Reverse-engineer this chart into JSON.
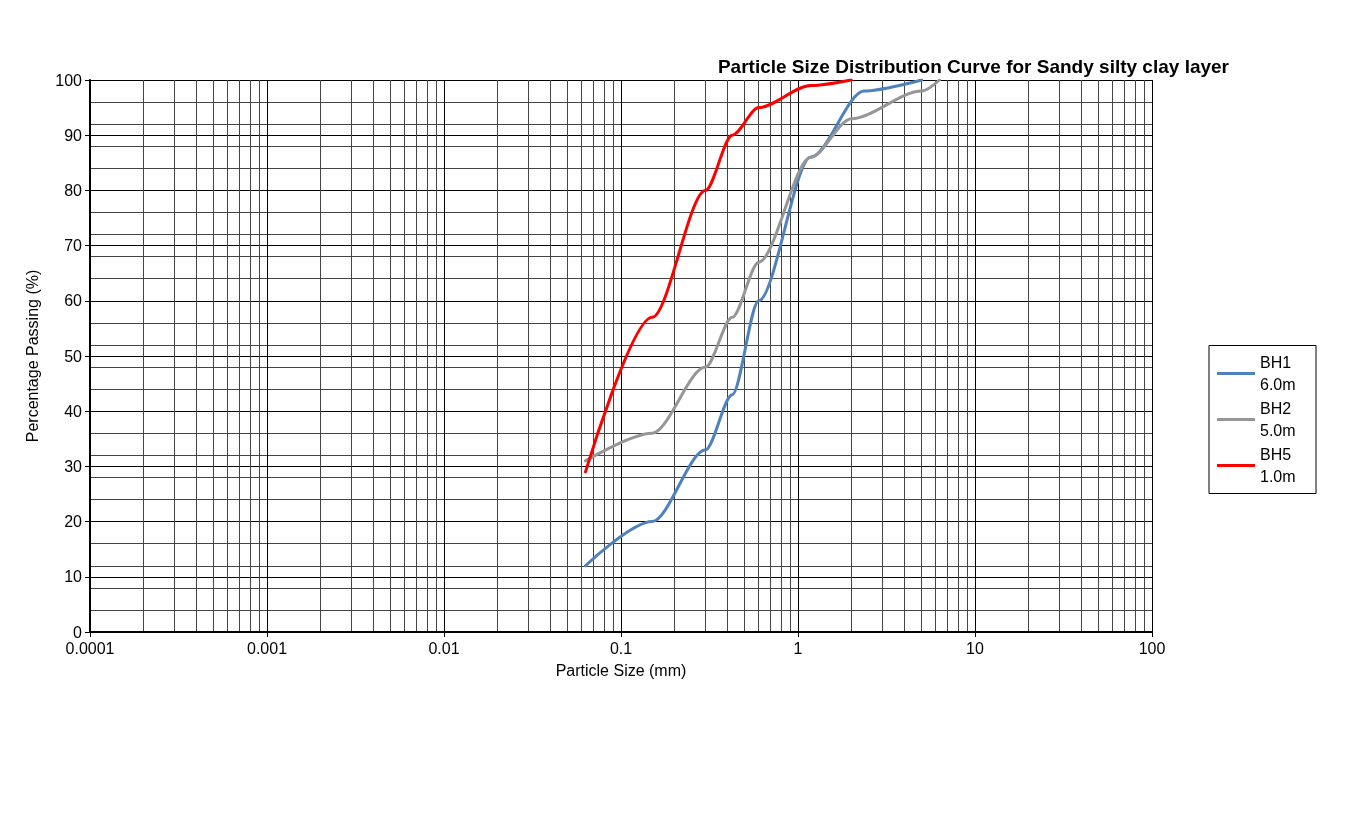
{
  "chart_data": {
    "type": "line",
    "title": "Particle Size Distribution Curve for Sandy silty clay layer",
    "xlabel": "Particle Size (mm)",
    "ylabel": "Percentage Passing (%)",
    "log": "x",
    "xlim": [
      0.0001,
      100
    ],
    "xticks": [
      0.0001,
      0.001,
      0.01,
      0.1,
      1,
      10,
      100
    ],
    "ylim": [
      0,
      100
    ],
    "yticks": [
      0,
      10,
      20,
      30,
      40,
      50,
      60,
      70,
      80,
      90,
      100
    ],
    "grid": true,
    "legend": "right",
    "marker": "none",
    "line_style": "solid",
    "series": [
      {
        "name": "BH1 6.0m",
        "color": "#4f81bd",
        "x": [
          0.063,
          0.15,
          0.3,
          0.425,
          0.6,
          1.18,
          2.36,
          5
        ],
        "values": [
          12,
          20,
          33,
          43,
          60,
          86,
          98,
          100
        ]
      },
      {
        "name": "BH2 5.0m",
        "color": "#969696",
        "x": [
          0.063,
          0.15,
          0.3,
          0.425,
          0.6,
          1.18,
          2,
          5,
          6.3
        ],
        "values": [
          31,
          36,
          48,
          57,
          67,
          86,
          93,
          98,
          100
        ]
      },
      {
        "name": "BH5 1.0m",
        "color": "#ff0000",
        "x": [
          0.063,
          0.15,
          0.3,
          0.425,
          0.6,
          1.18,
          2
        ],
        "values": [
          29,
          57,
          80,
          90,
          95,
          99,
          100
        ]
      }
    ]
  }
}
